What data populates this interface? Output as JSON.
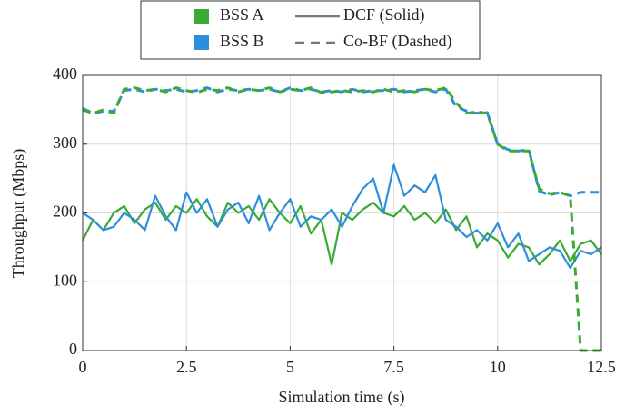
{
  "chart_data": {
    "type": "line",
    "xlabel": "Simulation time (s)",
    "ylabel": "Throughput (Mbps)",
    "x": [
      0,
      0.25,
      0.5,
      0.75,
      1,
      1.25,
      1.5,
      1.75,
      2,
      2.25,
      2.5,
      2.75,
      3,
      3.25,
      3.5,
      3.75,
      4,
      4.25,
      4.5,
      4.75,
      5,
      5.25,
      5.5,
      5.75,
      6,
      6.25,
      6.5,
      6.75,
      7,
      7.25,
      7.5,
      7.75,
      8,
      8.25,
      8.5,
      8.75,
      9,
      9.25,
      9.5,
      9.75,
      10,
      10.25,
      10.5,
      10.75,
      11,
      11.25,
      11.5,
      11.75,
      12,
      12.25,
      12.5
    ],
    "xlim": [
      0,
      12.5
    ],
    "xticks": [
      0,
      2.5,
      5,
      7.5,
      10,
      12.5
    ],
    "ylim": [
      0,
      400
    ],
    "yticks": [
      0,
      100,
      200,
      300,
      400
    ],
    "grid": true,
    "legend": {
      "colors": [
        {
          "name": "BSS A",
          "color": "#3aaa35"
        },
        {
          "name": "BSS B",
          "color": "#2d8fdc"
        }
      ],
      "styles": [
        {
          "name": "DCF (Solid)",
          "dashed": false
        },
        {
          "name": "Co-BF (Dashed)",
          "dashed": true
        }
      ]
    },
    "series": [
      {
        "color": "#3aaa35",
        "dashed": false,
        "values": [
          160,
          190,
          175,
          200,
          210,
          185,
          205,
          215,
          190,
          210,
          200,
          220,
          195,
          180,
          215,
          200,
          210,
          190,
          220,
          200,
          185,
          210,
          170,
          190,
          125,
          200,
          190,
          205,
          215,
          200,
          195,
          210,
          190,
          200,
          185,
          205,
          175,
          195,
          150,
          170,
          160,
          135,
          155,
          150,
          125,
          140,
          160,
          130,
          155,
          160,
          140
        ]
      },
      {
        "color": "#2d8fdc",
        "dashed": false,
        "values": [
          200,
          190,
          175,
          180,
          200,
          190,
          175,
          225,
          195,
          175,
          230,
          200,
          220,
          180,
          205,
          215,
          185,
          225,
          175,
          200,
          220,
          180,
          195,
          190,
          205,
          180,
          210,
          235,
          250,
          200,
          270,
          225,
          240,
          230,
          255,
          190,
          180,
          165,
          175,
          160,
          185,
          150,
          170,
          130,
          140,
          150,
          145,
          120,
          145,
          140,
          150
        ]
      },
      {
        "color": "#2d8fdc",
        "dashed": true,
        "values": [
          352,
          345,
          348,
          348,
          378,
          380,
          376,
          380,
          378,
          380,
          376,
          378,
          382,
          376,
          380,
          378,
          380,
          378,
          380,
          376,
          382,
          378,
          380,
          376,
          378,
          376,
          380,
          376,
          378,
          378,
          380,
          376,
          378,
          380,
          376,
          380,
          355,
          348,
          345,
          346,
          300,
          292,
          290,
          292,
          232,
          226,
          230,
          225,
          230,
          230,
          230
        ]
      },
      {
        "color": "#3aaa35",
        "dashed": true,
        "values": [
          350,
          345,
          350,
          345,
          380,
          382,
          378,
          380,
          376,
          382,
          378,
          375,
          380,
          378,
          382,
          376,
          380,
          378,
          382,
          376,
          380,
          378,
          382,
          375,
          376,
          378,
          376,
          378,
          376,
          380,
          376,
          378,
          376,
          380,
          378,
          382,
          360,
          345,
          347,
          345,
          300,
          290,
          290,
          290,
          235,
          228,
          230,
          225,
          0,
          0,
          0
        ]
      }
    ]
  }
}
